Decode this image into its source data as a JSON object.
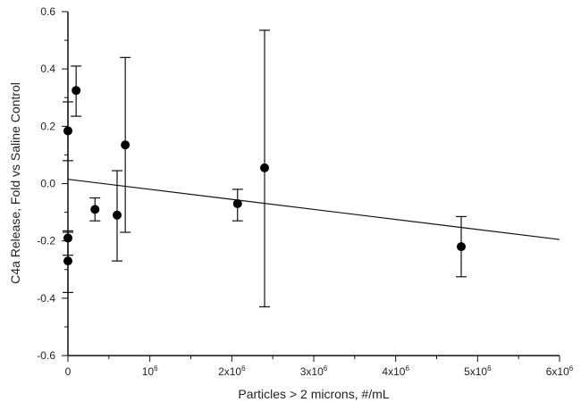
{
  "chart_data": {
    "type": "scatter",
    "title": "",
    "xlabel": "Particles > 2 microns, #/mL",
    "ylabel": "C4a Release, Fold vs Saline Control",
    "xlim": [
      0,
      6000000
    ],
    "ylim": [
      -0.6,
      0.6
    ],
    "x_ticks": [
      {
        "value": 0,
        "label": "0"
      },
      {
        "value": 1000000,
        "label": "10",
        "exp": "6"
      },
      {
        "value": 2000000,
        "label": "2x10",
        "exp": "6"
      },
      {
        "value": 3000000,
        "label": "3x10",
        "exp": "6"
      },
      {
        "value": 4000000,
        "label": "4x10",
        "exp": "6"
      },
      {
        "value": 5000000,
        "label": "5x10",
        "exp": "6"
      },
      {
        "value": 6000000,
        "label": "6x10",
        "exp": "6"
      }
    ],
    "y_ticks": [
      {
        "value": -0.6,
        "label": "-0.6"
      },
      {
        "value": -0.4,
        "label": "-0.4"
      },
      {
        "value": -0.2,
        "label": "-0.2"
      },
      {
        "value": 0.0,
        "label": "0.0"
      },
      {
        "value": 0.2,
        "label": "0.2"
      },
      {
        "value": 0.4,
        "label": "0.4"
      },
      {
        "value": 0.6,
        "label": "0.6"
      }
    ],
    "grid": false,
    "points": [
      {
        "x": 0,
        "y": 0.184,
        "err_low": 0.08,
        "err_high": 0.285
      },
      {
        "x": 100000,
        "y": 0.325,
        "err_low": 0.235,
        "err_high": 0.41
      },
      {
        "x": 0,
        "y": -0.19,
        "err_low": -0.25,
        "err_high": -0.165
      },
      {
        "x": 0,
        "y": -0.27,
        "err_low": -0.38,
        "err_high": -0.17
      },
      {
        "x": 330000,
        "y": -0.09,
        "err_low": -0.13,
        "err_high": -0.05
      },
      {
        "x": 600000,
        "y": -0.11,
        "err_low": -0.27,
        "err_high": 0.045
      },
      {
        "x": 700000,
        "y": 0.135,
        "err_low": -0.17,
        "err_high": 0.44
      },
      {
        "x": 2070000,
        "y": -0.07,
        "err_low": -0.13,
        "err_high": -0.02
      },
      {
        "x": 2400000,
        "y": 0.055,
        "err_low": -0.43,
        "err_high": 0.535
      },
      {
        "x": 4800000,
        "y": -0.22,
        "err_low": -0.325,
        "err_high": -0.115
      }
    ],
    "trendline": {
      "x": [
        0,
        6000000
      ],
      "y": [
        0.015,
        -0.195
      ]
    }
  }
}
